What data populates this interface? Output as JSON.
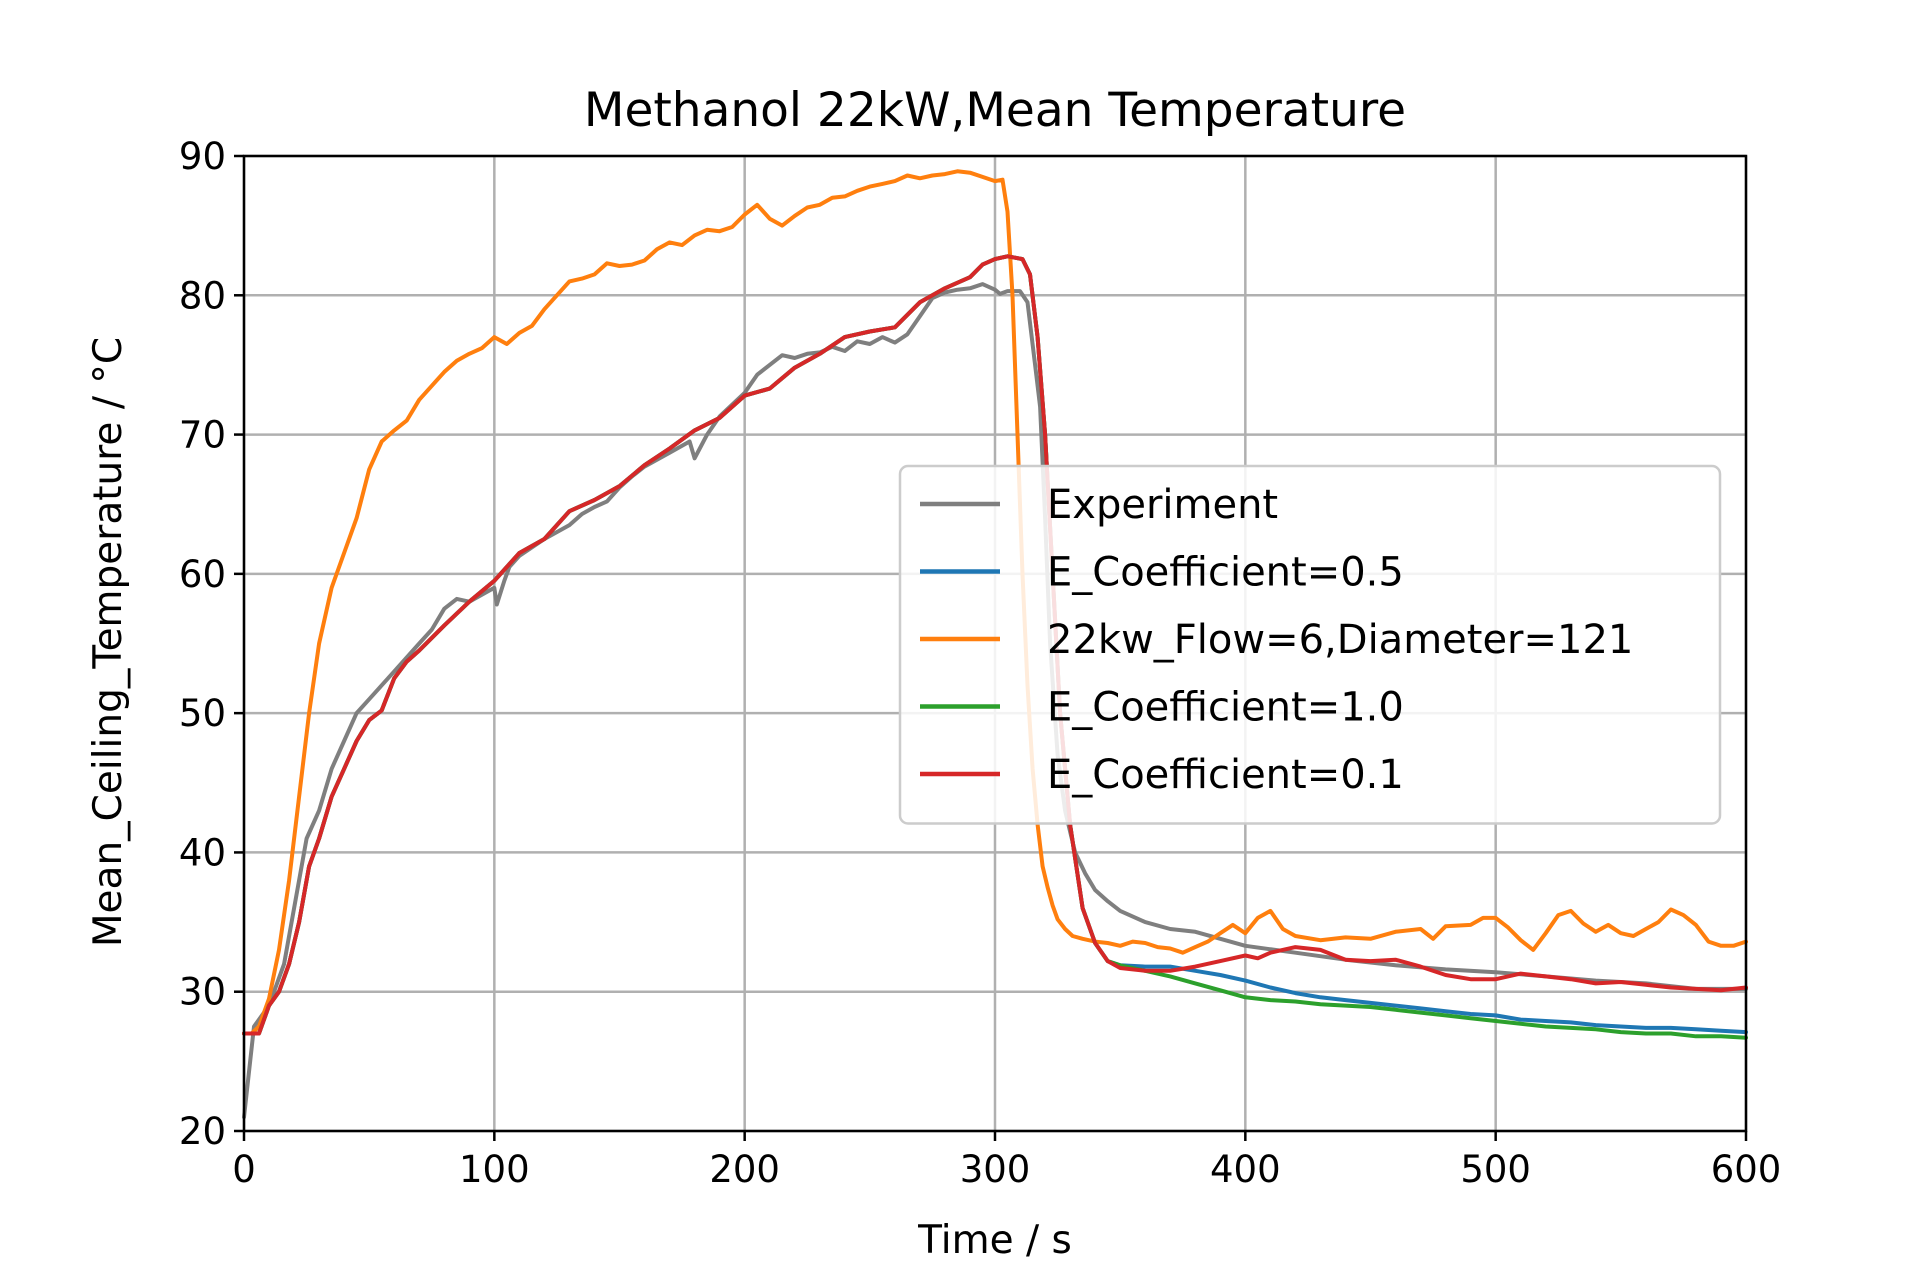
{
  "chart_data": {
    "type": "line",
    "title": "Methanol 22kW,Mean Temperature",
    "xlabel": "Time / s",
    "ylabel": "Mean_Ceiling_Temperature / °C",
    "xlim": [
      0,
      600
    ],
    "ylim": [
      20,
      90
    ],
    "xticks": [
      0,
      100,
      200,
      300,
      400,
      500,
      600
    ],
    "yticks": [
      20,
      30,
      40,
      50,
      60,
      70,
      80,
      90
    ],
    "grid": true,
    "legend_position": "center-right",
    "series": [
      {
        "name": "Experiment",
        "color": "#7f7f7f",
        "x": [
          0,
          4,
          10,
          16,
          20,
          25,
          30,
          35,
          40,
          45,
          50,
          55,
          60,
          65,
          70,
          75,
          80,
          85,
          90,
          95,
          100,
          101,
          104,
          106,
          110,
          120,
          130,
          135,
          140,
          145,
          150,
          155,
          160,
          170,
          178,
          180,
          185,
          190,
          200,
          205,
          210,
          215,
          220,
          225,
          230,
          235,
          240,
          245,
          250,
          255,
          260,
          265,
          270,
          275,
          280,
          285,
          290,
          295,
          300,
          302,
          305,
          310,
          313,
          316,
          318,
          320,
          322,
          325,
          328,
          332,
          336,
          340,
          345,
          350,
          360,
          370,
          380,
          390,
          400,
          420,
          440,
          460,
          480,
          500,
          520,
          540,
          560,
          580,
          600
        ],
        "y": [
          21,
          27.5,
          29,
          32,
          36,
          41,
          43,
          46,
          48,
          50,
          51,
          52,
          53,
          54,
          55,
          56,
          57.5,
          58.2,
          58,
          58.5,
          59,
          57.8,
          59.5,
          60.5,
          61.3,
          62.5,
          63.5,
          64.3,
          64.8,
          65.2,
          66.2,
          67,
          67.7,
          68.7,
          69.5,
          68.3,
          70,
          71.3,
          73,
          74.3,
          75,
          75.7,
          75.5,
          75.8,
          75.9,
          76.3,
          76,
          76.7,
          76.5,
          77,
          76.6,
          77.2,
          78.5,
          79.8,
          80.2,
          80.4,
          80.5,
          80.8,
          80.4,
          80.1,
          80.3,
          80.3,
          79.5,
          75,
          72,
          64,
          55,
          47,
          43,
          40,
          38.5,
          37.3,
          36.5,
          35.8,
          35,
          34.5,
          34.3,
          33.8,
          33.3,
          32.8,
          32.3,
          31.9,
          31.6,
          31.4,
          31.1,
          30.8,
          30.6,
          30.2,
          30.2
        ]
      },
      {
        "name": "E_Coefficient=0.5",
        "color": "#1f77b4",
        "x": [
          0,
          2,
          6,
          10,
          14,
          18,
          22,
          26,
          30,
          35,
          40,
          45,
          50,
          55,
          60,
          65,
          70,
          80,
          90,
          100,
          110,
          120,
          130,
          140,
          150,
          160,
          170,
          180,
          190,
          200,
          210,
          220,
          230,
          240,
          250,
          260,
          270,
          280,
          290,
          295,
          300,
          305,
          308,
          311,
          314,
          317,
          320,
          323,
          326,
          330,
          335,
          340,
          345,
          350,
          360,
          370,
          380,
          390,
          400,
          410,
          420,
          430,
          440,
          450,
          460,
          470,
          480,
          490,
          500,
          510,
          520,
          530,
          540,
          550,
          560,
          570,
          580,
          590,
          600
        ],
        "y": [
          27,
          27,
          27,
          29,
          30,
          32,
          35,
          39,
          41,
          44,
          46,
          48,
          49.5,
          50.2,
          52.5,
          53.7,
          54.5,
          56.3,
          58,
          59.5,
          61.5,
          62.5,
          64.5,
          65.3,
          66.3,
          67.8,
          69,
          70.3,
          71.2,
          72.8,
          73.3,
          74.8,
          75.8,
          77,
          77.4,
          77.7,
          79.5,
          80.5,
          81.3,
          82.2,
          82.6,
          82.8,
          82.7,
          82.6,
          81.5,
          77,
          70,
          60,
          50,
          42,
          36,
          33.5,
          32.2,
          31.9,
          31.8,
          31.8,
          31.5,
          31.2,
          30.8,
          30.3,
          29.9,
          29.6,
          29.4,
          29.2,
          29,
          28.8,
          28.6,
          28.4,
          28.3,
          28,
          27.9,
          27.8,
          27.6,
          27.5,
          27.4,
          27.4,
          27.3,
          27.2,
          27.1
        ]
      },
      {
        "name": "22kw_Flow=6,Diameter=121",
        "color": "#ff7f0e",
        "x": [
          0,
          3,
          6,
          10,
          14,
          18,
          22,
          26,
          30,
          35,
          40,
          45,
          50,
          55,
          60,
          65,
          70,
          75,
          80,
          85,
          90,
          95,
          100,
          105,
          110,
          115,
          120,
          125,
          130,
          135,
          140,
          145,
          150,
          155,
          160,
          165,
          170,
          175,
          180,
          185,
          190,
          195,
          200,
          205,
          210,
          215,
          220,
          225,
          230,
          235,
          240,
          245,
          250,
          255,
          260,
          265,
          270,
          275,
          280,
          285,
          290,
          295,
          300,
          303,
          305,
          307,
          309,
          311,
          313,
          315,
          317,
          319,
          321,
          323,
          325,
          328,
          331,
          335,
          340,
          345,
          350,
          355,
          360,
          365,
          370,
          375,
          380,
          385,
          390,
          395,
          400,
          405,
          410,
          415,
          420,
          430,
          440,
          450,
          460,
          470,
          475,
          480,
          490,
          495,
          500,
          505,
          510,
          515,
          520,
          525,
          530,
          535,
          540,
          545,
          550,
          555,
          560,
          565,
          570,
          575,
          580,
          585,
          590,
          595,
          600
        ],
        "y": [
          27,
          27,
          27.5,
          29.5,
          33,
          38,
          44,
          50,
          55,
          59,
          61.5,
          64,
          67.5,
          69.5,
          70.3,
          71,
          72.5,
          73.5,
          74.5,
          75.3,
          75.8,
          76.2,
          77,
          76.5,
          77.3,
          77.8,
          79,
          80,
          81,
          81.2,
          81.5,
          82.3,
          82.1,
          82.2,
          82.5,
          83.3,
          83.8,
          83.6,
          84.3,
          84.7,
          84.6,
          84.9,
          85.8,
          86.5,
          85.5,
          85,
          85.7,
          86.3,
          86.5,
          87,
          87.1,
          87.5,
          87.8,
          88,
          88.2,
          88.6,
          88.4,
          88.6,
          88.7,
          88.9,
          88.8,
          88.5,
          88.2,
          88.3,
          86,
          80,
          70,
          60,
          52,
          46,
          42,
          39,
          37.5,
          36.2,
          35.2,
          34.5,
          34,
          33.8,
          33.6,
          33.5,
          33.3,
          33.6,
          33.5,
          33.2,
          33.1,
          32.8,
          33.2,
          33.6,
          34.2,
          34.8,
          34.2,
          35.3,
          35.8,
          34.5,
          34,
          33.7,
          33.9,
          33.8,
          34.3,
          34.5,
          33.8,
          34.7,
          34.8,
          35.3,
          35.3,
          34.6,
          33.7,
          33,
          34.2,
          35.5,
          35.8,
          34.9,
          34.3,
          34.8,
          34.2,
          34,
          34.5,
          35,
          35.9,
          35.5,
          34.8,
          33.6,
          33.3,
          33.3,
          33.6
        ]
      },
      {
        "name": "E_Coefficient=1.0",
        "color": "#2ca02c",
        "x": [
          0,
          2,
          6,
          10,
          14,
          18,
          22,
          26,
          30,
          35,
          40,
          45,
          50,
          55,
          60,
          65,
          70,
          80,
          90,
          100,
          110,
          120,
          130,
          140,
          150,
          160,
          170,
          180,
          190,
          200,
          210,
          220,
          230,
          240,
          250,
          260,
          270,
          280,
          290,
          295,
          300,
          305,
          308,
          311,
          314,
          317,
          320,
          323,
          326,
          330,
          335,
          340,
          345,
          350,
          360,
          370,
          380,
          390,
          400,
          410,
          420,
          430,
          440,
          450,
          460,
          470,
          480,
          490,
          500,
          510,
          520,
          530,
          540,
          550,
          560,
          570,
          580,
          590,
          600
        ],
        "y": [
          27,
          27,
          27,
          29,
          30,
          32,
          35,
          39,
          41,
          44,
          46,
          48,
          49.5,
          50.2,
          52.5,
          53.7,
          54.5,
          56.3,
          58,
          59.5,
          61.5,
          62.5,
          64.5,
          65.3,
          66.3,
          67.8,
          69,
          70.3,
          71.2,
          72.8,
          73.3,
          74.8,
          75.8,
          77,
          77.4,
          77.7,
          79.5,
          80.5,
          81.3,
          82.2,
          82.6,
          82.8,
          82.7,
          82.6,
          81.5,
          77,
          70,
          60,
          50,
          42,
          36,
          33.5,
          32.2,
          31.9,
          31.5,
          31.1,
          30.6,
          30.1,
          29.6,
          29.4,
          29.3,
          29.1,
          29,
          28.9,
          28.7,
          28.5,
          28.3,
          28.1,
          27.9,
          27.7,
          27.5,
          27.4,
          27.3,
          27.1,
          27,
          27,
          26.8,
          26.8,
          26.7
        ]
      },
      {
        "name": "E_Coefficient=0.1",
        "color": "#d62728",
        "x": [
          0,
          2,
          6,
          10,
          14,
          18,
          22,
          26,
          30,
          35,
          40,
          45,
          50,
          55,
          60,
          65,
          70,
          80,
          90,
          100,
          110,
          120,
          130,
          140,
          150,
          160,
          170,
          180,
          190,
          200,
          210,
          220,
          230,
          240,
          250,
          260,
          270,
          280,
          290,
          295,
          300,
          305,
          308,
          311,
          314,
          317,
          320,
          323,
          326,
          330,
          335,
          340,
          345,
          350,
          360,
          370,
          380,
          390,
          400,
          405,
          410,
          420,
          430,
          440,
          450,
          460,
          470,
          480,
          490,
          500,
          510,
          520,
          530,
          540,
          550,
          560,
          570,
          580,
          590,
          600
        ],
        "y": [
          27,
          27,
          27,
          29,
          30,
          32,
          35,
          39,
          41,
          44,
          46,
          48,
          49.5,
          50.2,
          52.5,
          53.7,
          54.5,
          56.3,
          58,
          59.5,
          61.5,
          62.5,
          64.5,
          65.3,
          66.3,
          67.8,
          69,
          70.3,
          71.2,
          72.8,
          73.3,
          74.8,
          75.8,
          77,
          77.4,
          77.7,
          79.5,
          80.5,
          81.3,
          82.2,
          82.6,
          82.8,
          82.7,
          82.6,
          81.5,
          77,
          70,
          60,
          50,
          42,
          36,
          33.5,
          32.2,
          31.7,
          31.5,
          31.5,
          31.8,
          32.2,
          32.6,
          32.4,
          32.8,
          33.2,
          33,
          32.3,
          32.2,
          32.3,
          31.8,
          31.2,
          30.9,
          30.9,
          31.3,
          31.1,
          30.9,
          30.6,
          30.7,
          30.5,
          30.3,
          30.2,
          30.1,
          30.3
        ]
      }
    ]
  }
}
